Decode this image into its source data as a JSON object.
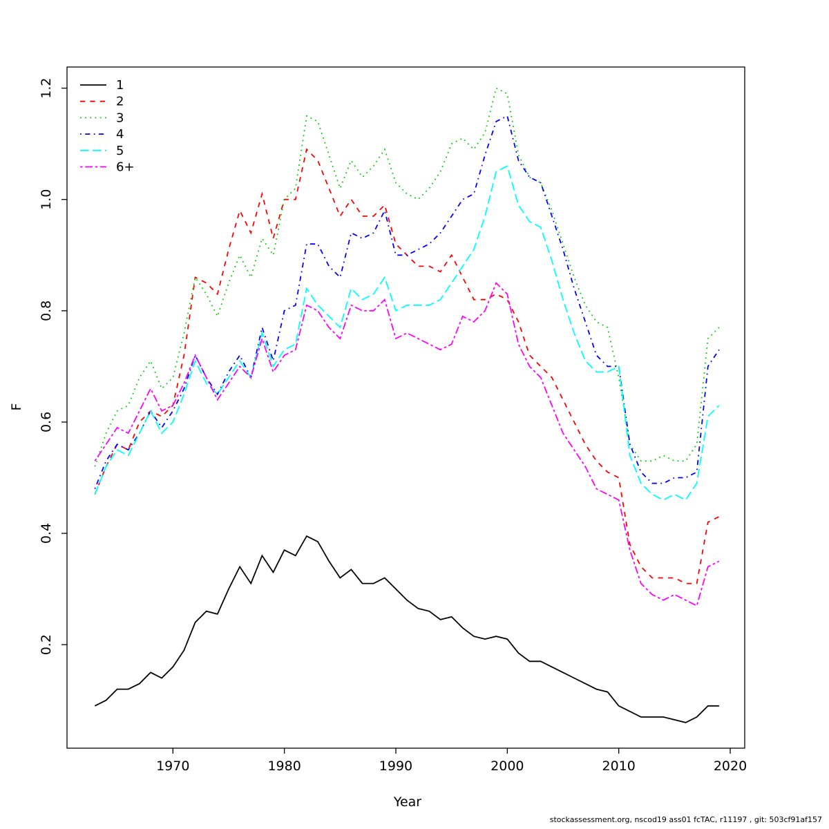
{
  "page": {
    "xlabel": "Year",
    "ylabel": "F",
    "footer": "stockassessment.org, nscod19 ass01 fcTAC, r11197 , git: 503cf91af157"
  },
  "chart_data": {
    "type": "line",
    "title": "",
    "xlabel": "Year",
    "ylabel": "F",
    "xlim": [
      1960.5,
      2021.3
    ],
    "ylim": [
      0.014,
      1.238
    ],
    "x_ticks": [
      1970,
      1980,
      1990,
      2000,
      2010,
      2020
    ],
    "y_ticks": [
      0.2,
      0.4,
      0.6,
      0.8,
      1.0,
      1.2
    ],
    "grid": false,
    "legend_position": "top-left",
    "x": [
      1963,
      1964,
      1965,
      1966,
      1967,
      1968,
      1969,
      1970,
      1971,
      1972,
      1973,
      1974,
      1975,
      1976,
      1977,
      1978,
      1979,
      1980,
      1981,
      1982,
      1983,
      1984,
      1985,
      1986,
      1987,
      1988,
      1989,
      1990,
      1991,
      1992,
      1993,
      1994,
      1995,
      1996,
      1997,
      1998,
      1999,
      2000,
      2001,
      2002,
      2003,
      2004,
      2005,
      2006,
      2007,
      2008,
      2009,
      2010,
      2011,
      2012,
      2013,
      2014,
      2015,
      2016,
      2017,
      2018,
      2019
    ],
    "series": [
      {
        "name": "1",
        "color": "#000000",
        "linestyle": "solid",
        "values": [
          0.09,
          0.1,
          0.12,
          0.12,
          0.13,
          0.15,
          0.14,
          0.16,
          0.19,
          0.24,
          0.26,
          0.255,
          0.3,
          0.34,
          0.31,
          0.36,
          0.33,
          0.37,
          0.36,
          0.395,
          0.385,
          0.35,
          0.32,
          0.335,
          0.31,
          0.31,
          0.32,
          0.3,
          0.28,
          0.265,
          0.26,
          0.245,
          0.25,
          0.23,
          0.215,
          0.21,
          0.215,
          0.21,
          0.185,
          0.17,
          0.17,
          0.16,
          0.15,
          0.14,
          0.13,
          0.12,
          0.115,
          0.09,
          0.08,
          0.07,
          0.07,
          0.07,
          0.065,
          0.06,
          0.07,
          0.09,
          0.09
        ]
      },
      {
        "name": "2",
        "color": "#ff0000",
        "linestyle": "dashed",
        "values": [
          0.47,
          0.52,
          0.56,
          0.55,
          0.6,
          0.62,
          0.61,
          0.63,
          0.72,
          0.86,
          0.85,
          0.83,
          0.91,
          0.98,
          0.94,
          1.01,
          0.93,
          1.0,
          1.0,
          1.09,
          1.07,
          1.02,
          0.97,
          1.0,
          0.97,
          0.97,
          0.99,
          0.92,
          0.9,
          0.88,
          0.88,
          0.87,
          0.9,
          0.86,
          0.82,
          0.82,
          0.83,
          0.82,
          0.78,
          0.72,
          0.7,
          0.68,
          0.64,
          0.6,
          0.56,
          0.53,
          0.51,
          0.5,
          0.38,
          0.34,
          0.32,
          0.32,
          0.32,
          0.31,
          0.31,
          0.42,
          0.43
        ]
      },
      {
        "name": "3",
        "color": "#00cd00",
        "linestyle": "dotted",
        "values": [
          0.52,
          0.58,
          0.62,
          0.63,
          0.68,
          0.71,
          0.66,
          0.68,
          0.76,
          0.86,
          0.83,
          0.79,
          0.85,
          0.9,
          0.86,
          0.93,
          0.9,
          1.0,
          1.02,
          1.15,
          1.14,
          1.08,
          1.02,
          1.07,
          1.04,
          1.06,
          1.09,
          1.03,
          1.01,
          1.0,
          1.02,
          1.05,
          1.1,
          1.11,
          1.09,
          1.12,
          1.2,
          1.19,
          1.08,
          1.04,
          1.03,
          0.98,
          0.92,
          0.86,
          0.81,
          0.78,
          0.77,
          0.68,
          0.56,
          0.53,
          0.53,
          0.54,
          0.53,
          0.53,
          0.56,
          0.75,
          0.77
        ]
      },
      {
        "name": "4",
        "color": "#0000ff",
        "linestyle": "dotdash",
        "values": [
          0.48,
          0.53,
          0.56,
          0.55,
          0.58,
          0.62,
          0.59,
          0.62,
          0.66,
          0.72,
          0.68,
          0.65,
          0.69,
          0.72,
          0.68,
          0.77,
          0.71,
          0.8,
          0.81,
          0.92,
          0.92,
          0.88,
          0.86,
          0.94,
          0.93,
          0.94,
          0.98,
          0.9,
          0.9,
          0.91,
          0.92,
          0.94,
          0.97,
          1.0,
          1.01,
          1.08,
          1.14,
          1.15,
          1.07,
          1.04,
          1.03,
          0.97,
          0.91,
          0.84,
          0.78,
          0.72,
          0.7,
          0.7,
          0.56,
          0.51,
          0.49,
          0.49,
          0.5,
          0.5,
          0.51,
          0.7,
          0.73
        ]
      },
      {
        "name": "5",
        "color": "#00ffff",
        "linestyle": "longdash",
        "values": [
          0.47,
          0.52,
          0.55,
          0.54,
          0.58,
          0.62,
          0.58,
          0.6,
          0.65,
          0.71,
          0.67,
          0.65,
          0.68,
          0.71,
          0.68,
          0.76,
          0.7,
          0.73,
          0.74,
          0.84,
          0.81,
          0.79,
          0.77,
          0.84,
          0.82,
          0.83,
          0.86,
          0.8,
          0.81,
          0.81,
          0.81,
          0.82,
          0.85,
          0.88,
          0.91,
          0.97,
          1.05,
          1.06,
          0.99,
          0.96,
          0.95,
          0.89,
          0.82,
          0.76,
          0.71,
          0.69,
          0.69,
          0.7,
          0.54,
          0.49,
          0.47,
          0.46,
          0.47,
          0.46,
          0.49,
          0.61,
          0.63
        ]
      },
      {
        "name": "6+",
        "color": "#ff00ff",
        "linestyle": "twodash",
        "values": [
          0.53,
          0.56,
          0.59,
          0.58,
          0.62,
          0.66,
          0.62,
          0.63,
          0.67,
          0.72,
          0.68,
          0.64,
          0.67,
          0.7,
          0.68,
          0.75,
          0.69,
          0.72,
          0.73,
          0.81,
          0.8,
          0.77,
          0.75,
          0.81,
          0.8,
          0.8,
          0.82,
          0.75,
          0.76,
          0.75,
          0.74,
          0.73,
          0.74,
          0.79,
          0.78,
          0.8,
          0.85,
          0.83,
          0.74,
          0.7,
          0.68,
          0.63,
          0.58,
          0.55,
          0.52,
          0.48,
          0.47,
          0.46,
          0.37,
          0.31,
          0.29,
          0.28,
          0.29,
          0.28,
          0.27,
          0.34,
          0.35
        ]
      }
    ]
  }
}
